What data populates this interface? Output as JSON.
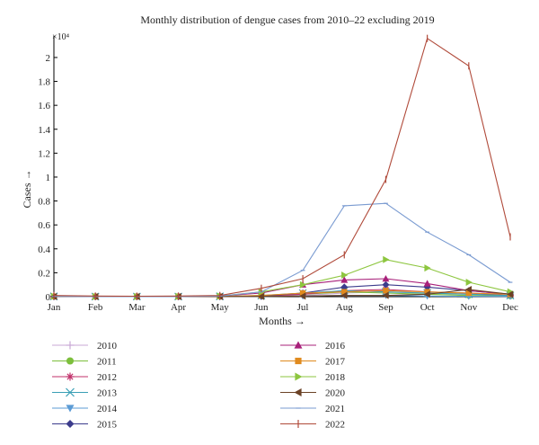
{
  "chart_data": {
    "type": "line",
    "title": "Monthly distribution of dengue cases from 2010–22 excluding 2019",
    "xlabel": "Months →",
    "ylabel": "Cases →",
    "y_multiplier": "×10⁴",
    "categories": [
      "Jan",
      "Feb",
      "Mar",
      "Apr",
      "May",
      "Jun",
      "Jul",
      "Aug",
      "Sep",
      "Oct",
      "Nov",
      "Dec"
    ],
    "ylim": [
      0,
      2.18
    ],
    "yticks": [
      "0",
      "0.2",
      "0.4",
      "0.6",
      "0.8",
      "1",
      "1.2",
      "1.4",
      "1.6",
      "1.8",
      "2"
    ],
    "legend_position": "bottom",
    "series": [
      {
        "name": "2010",
        "color": "#c9a9d6",
        "marker": "plus",
        "values": [
          0.002,
          0.001,
          0.001,
          0.001,
          0.002,
          0.003,
          0.01,
          0.03,
          0.04,
          0.03,
          0.02,
          0.01
        ]
      },
      {
        "name": "2011",
        "color": "#7cbf3c",
        "marker": "circle",
        "values": [
          0.001,
          0.001,
          0.001,
          0.001,
          0.002,
          0.005,
          0.02,
          0.04,
          0.03,
          0.02,
          0.01,
          0.005
        ]
      },
      {
        "name": "2012",
        "color": "#c0306a",
        "marker": "star",
        "values": [
          0.001,
          0.001,
          0.001,
          0.001,
          0.002,
          0.005,
          0.02,
          0.05,
          0.06,
          0.04,
          0.03,
          0.01
        ]
      },
      {
        "name": "2013",
        "color": "#3a9fb5",
        "marker": "x",
        "values": [
          0.002,
          0.001,
          0.001,
          0.001,
          0.002,
          0.01,
          0.03,
          0.05,
          0.04,
          0.03,
          0.02,
          0.01
        ]
      },
      {
        "name": "2014",
        "color": "#5b9bd5",
        "marker": "triangle-down",
        "values": [
          0.001,
          0.001,
          0.001,
          0.001,
          0.001,
          0.002,
          0.005,
          0.01,
          0.01,
          0.005,
          0.003,
          0.002
        ]
      },
      {
        "name": "2015",
        "color": "#3c3c8c",
        "marker": "diamond",
        "values": [
          0.002,
          0.001,
          0.001,
          0.001,
          0.002,
          0.005,
          0.03,
          0.08,
          0.1,
          0.08,
          0.05,
          0.02
        ]
      },
      {
        "name": "2016",
        "color": "#a8207a",
        "marker": "triangle-up",
        "values": [
          0.005,
          0.002,
          0.002,
          0.002,
          0.005,
          0.03,
          0.1,
          0.14,
          0.15,
          0.11,
          0.05,
          0.02
        ]
      },
      {
        "name": "2017",
        "color": "#e08a1e",
        "marker": "square",
        "values": [
          0.002,
          0.001,
          0.001,
          0.001,
          0.002,
          0.01,
          0.03,
          0.04,
          0.05,
          0.04,
          0.03,
          0.02
        ]
      },
      {
        "name": "2018",
        "color": "#8dc63f",
        "marker": "triangle-right",
        "values": [
          0.003,
          0.001,
          0.001,
          0.002,
          0.005,
          0.04,
          0.1,
          0.18,
          0.31,
          0.24,
          0.12,
          0.04
        ]
      },
      {
        "name": "2020",
        "color": "#6b4226",
        "marker": "triangle-left",
        "values": [
          0.001,
          0.001,
          0.001,
          0.001,
          0.001,
          0.002,
          0.005,
          0.01,
          0.01,
          0.02,
          0.06,
          0.02
        ]
      },
      {
        "name": "2021",
        "color": "#7a9bd1",
        "marker": "dash",
        "values": [
          0.002,
          0.001,
          0.001,
          0.001,
          0.005,
          0.04,
          0.22,
          0.76,
          0.78,
          0.54,
          0.35,
          0.12
        ]
      },
      {
        "name": "2022",
        "color": "#b04a3a",
        "marker": "vtick",
        "values": [
          0.01,
          0.005,
          0.004,
          0.005,
          0.01,
          0.07,
          0.15,
          0.35,
          0.98,
          2.16,
          1.93,
          0.5
        ]
      }
    ]
  }
}
